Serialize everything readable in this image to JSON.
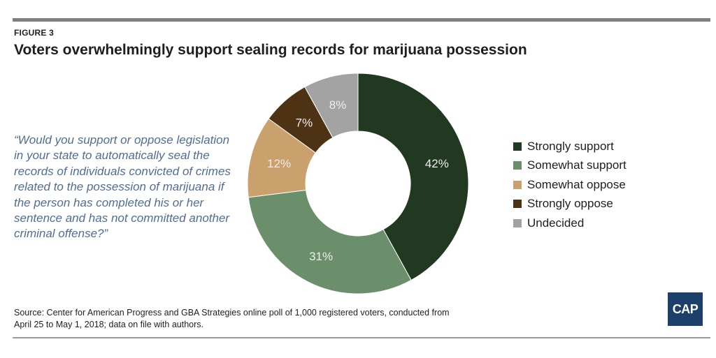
{
  "figure_label": "FIGURE 3",
  "title": "Voters overwhelmingly support sealing records for marijuana possession",
  "question": "“Would you support or oppose legislation in your state to automatically seal the records of individuals convicted of crimes related to the possession of marijuana if the person has completed his or her sentence and has not committed another criminal offense?”",
  "source": "Source: Center for American Progress and GBA Strategies online poll of 1,000 registered voters, conducted from April 25 to May 1, 2018; data on file with authors.",
  "logo_text": "CAP",
  "colors": {
    "question_text": "#4f6d95",
    "logo_bg": "#1c3f6b",
    "rule": "#808080"
  },
  "chart_data": {
    "type": "pie",
    "donut": true,
    "categories": [
      "Strongly support",
      "Somewhat support",
      "Somewhat oppose",
      "Strongly oppose",
      "Undecided"
    ],
    "values": [
      42,
      31,
      12,
      7,
      8
    ],
    "value_labels": [
      "42%",
      "31%",
      "12%",
      "7%",
      "8%"
    ],
    "colors": [
      "#213821",
      "#6b8f6b",
      "#caa06c",
      "#4d3214",
      "#a3a3a3"
    ],
    "legend_position": "right",
    "start": "top, clockwise"
  }
}
